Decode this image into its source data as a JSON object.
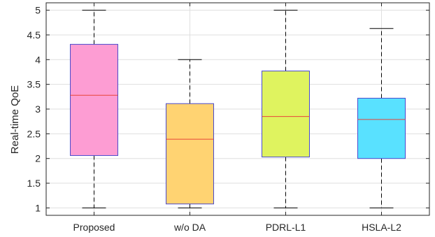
{
  "chart_data": {
    "type": "box",
    "title": "",
    "xlabel": "",
    "ylabel": "Real-time QoE",
    "ylim": [
      0.85,
      5.15
    ],
    "yticks": [
      1,
      1.5,
      2,
      2.5,
      3,
      3.5,
      4,
      4.5,
      5
    ],
    "ytick_labels": [
      "1",
      "1.5",
      "2",
      "2.5",
      "3",
      "3.5",
      "4",
      "4.5",
      "5"
    ],
    "grid": true,
    "categories": [
      "Proposed",
      "w/o DA",
      "PDRL-L1",
      "HSLA-L2"
    ],
    "boxes": [
      {
        "name": "Proposed",
        "min": 1,
        "q1": 2.06,
        "median": 3.28,
        "q3": 4.31,
        "max": 5,
        "color": "#fd9dd3"
      },
      {
        "name": "w/o DA",
        "min": 1,
        "q1": 1.08,
        "median": 2.39,
        "q3": 3.11,
        "max": 4,
        "color": "#ffd372"
      },
      {
        "name": "PDRL-L1",
        "min": 1,
        "q1": 2.03,
        "median": 2.85,
        "q3": 3.77,
        "max": 5,
        "color": "#dff35f"
      },
      {
        "name": "HSLA-L2",
        "min": 1,
        "q1": 2.0,
        "median": 2.79,
        "q3": 3.22,
        "max": 4.63,
        "color": "#59e1ff"
      }
    ],
    "box_edge_color": "#4a4acd",
    "median_color": "#e8453a"
  }
}
